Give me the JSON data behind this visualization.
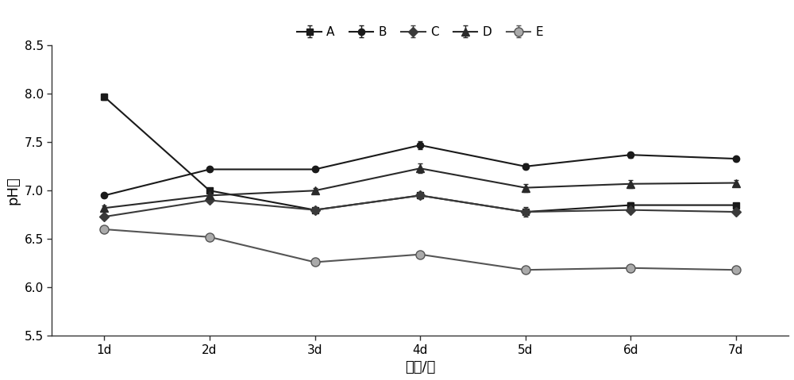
{
  "x_labels": [
    "1d",
    "2d",
    "3d",
    "4d",
    "5d",
    "6d",
    "7d"
  ],
  "x_values": [
    1,
    2,
    3,
    4,
    5,
    6,
    7
  ],
  "series": {
    "A": {
      "values": [
        7.97,
        7.0,
        6.8,
        6.95,
        6.78,
        6.85,
        6.85
      ],
      "errors": [
        0.03,
        0.03,
        0.02,
        0.03,
        0.05,
        0.03,
        0.02
      ],
      "marker": "s",
      "line_color": "#1a1a1a",
      "mfc": "#1a1a1a",
      "mec": "#1a1a1a",
      "markersize": 6,
      "linewidth": 1.5
    },
    "B": {
      "values": [
        6.95,
        7.22,
        7.22,
        7.47,
        7.25,
        7.37,
        7.33
      ],
      "errors": [
        0.02,
        0.02,
        0.02,
        0.04,
        0.03,
        0.03,
        0.02
      ],
      "marker": "o",
      "line_color": "#1a1a1a",
      "mfc": "#1a1a1a",
      "mec": "#1a1a1a",
      "markersize": 6,
      "linewidth": 1.5
    },
    "C": {
      "values": [
        6.73,
        6.9,
        6.8,
        6.95,
        6.78,
        6.8,
        6.78
      ],
      "errors": [
        0.02,
        0.02,
        0.02,
        0.03,
        0.02,
        0.02,
        0.02
      ],
      "marker": "D",
      "line_color": "#3a3a3a",
      "mfc": "#3a3a3a",
      "mec": "#3a3a3a",
      "markersize": 6,
      "linewidth": 1.5
    },
    "D": {
      "values": [
        6.82,
        6.95,
        7.0,
        7.23,
        7.03,
        7.07,
        7.08
      ],
      "errors": [
        0.03,
        0.03,
        0.03,
        0.05,
        0.04,
        0.04,
        0.03
      ],
      "marker": "^",
      "line_color": "#2a2a2a",
      "mfc": "#2a2a2a",
      "mec": "#2a2a2a",
      "markersize": 7,
      "linewidth": 1.5
    },
    "E": {
      "values": [
        6.6,
        6.52,
        6.26,
        6.34,
        6.18,
        6.2,
        6.18
      ],
      "errors": [
        0.02,
        0.02,
        0.02,
        0.02,
        0.02,
        0.02,
        0.02
      ],
      "marker": "o",
      "line_color": "#555555",
      "mfc": "#aaaaaa",
      "mec": "#555555",
      "markersize": 8,
      "linewidth": 1.5
    }
  },
  "series_order": [
    "A",
    "B",
    "C",
    "D",
    "E"
  ],
  "xlabel": "时间/天",
  "ylabel": "pH値",
  "ylim": [
    5.5,
    8.5
  ],
  "yticks": [
    5.5,
    6.0,
    6.5,
    7.0,
    7.5,
    8.0,
    8.5
  ],
  "background_color": "#ffffff",
  "label_fontsize": 13,
  "tick_fontsize": 11,
  "legend_fontsize": 11,
  "figsize": [
    10.0,
    4.79
  ],
  "dpi": 100
}
